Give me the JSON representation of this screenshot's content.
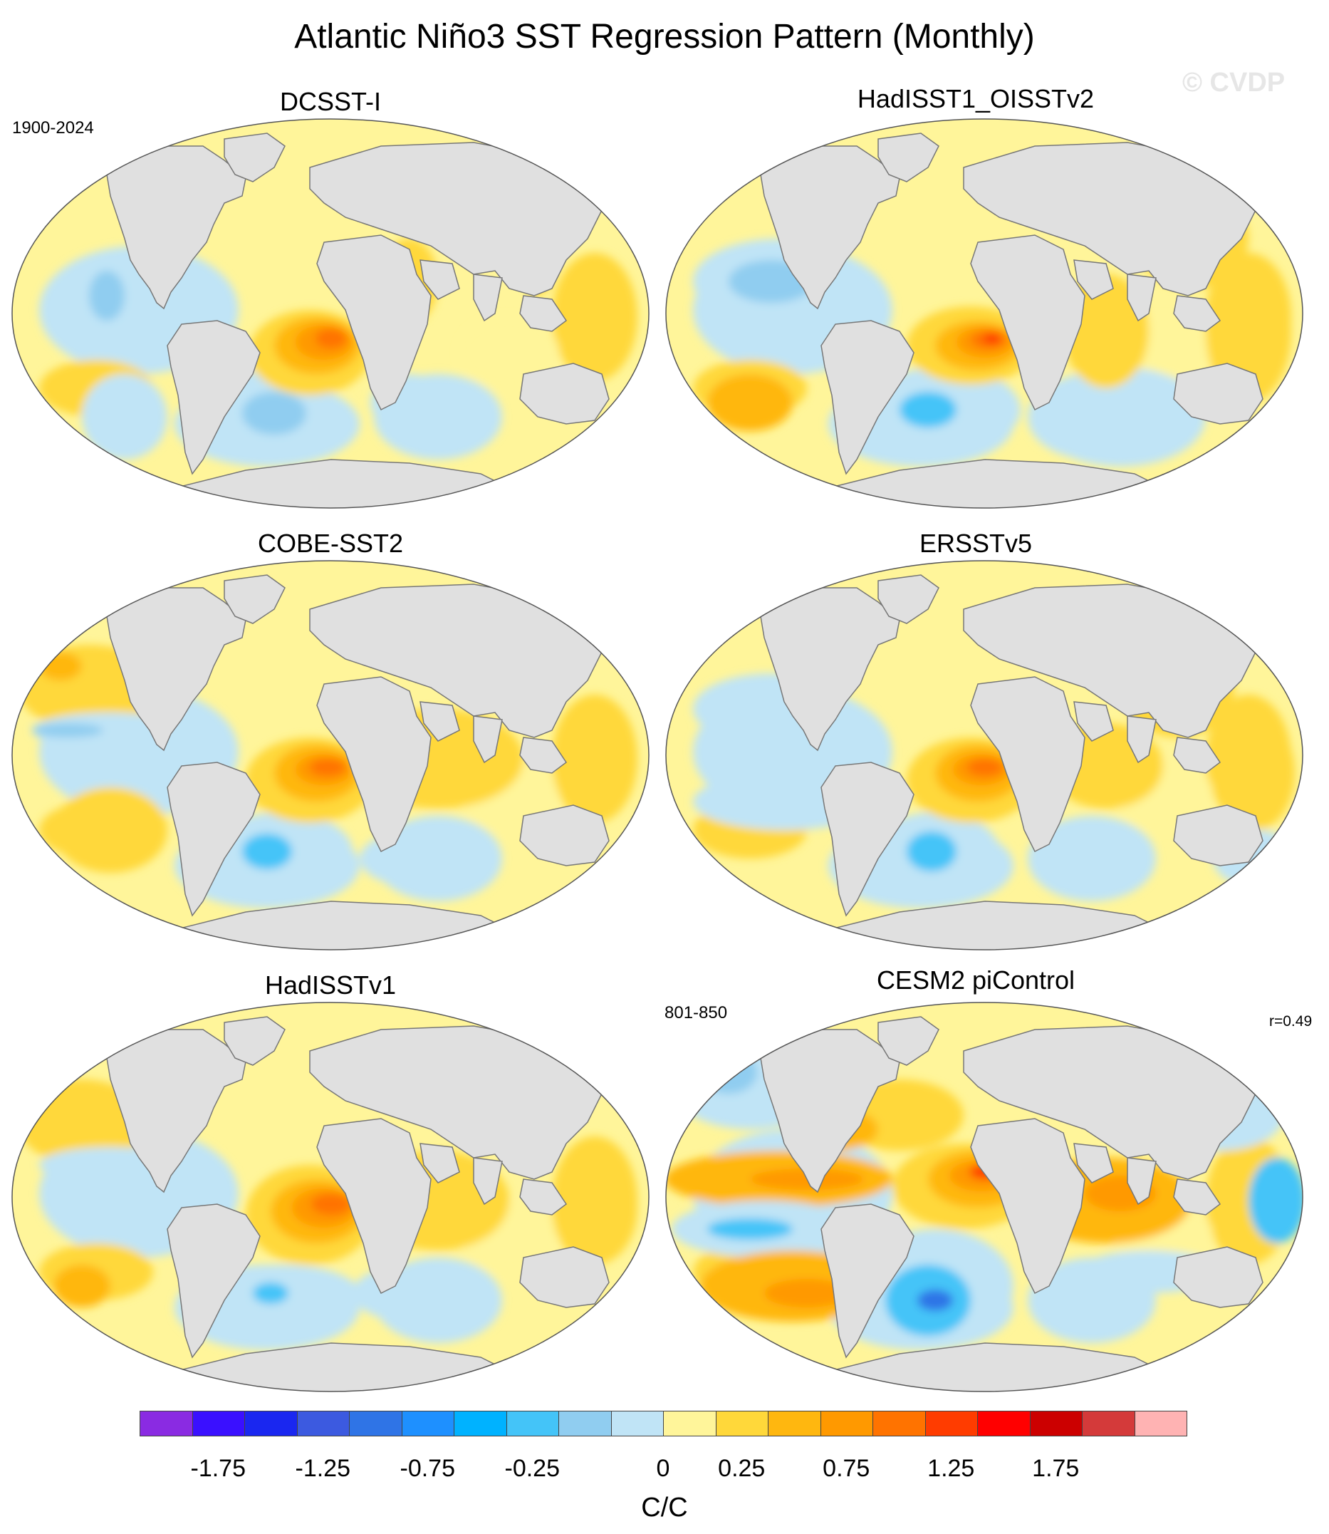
{
  "figure": {
    "title": "Atlantic Niño3 SST Regression Pattern (Monthly)",
    "watermark": "© CVDP",
    "units": "C/C"
  },
  "panels": [
    {
      "title": "DCSST-I",
      "left_note": "1900-2024",
      "right_note": ""
    },
    {
      "title": "HadISST1_OISSTv2",
      "left_note": "",
      "right_note": ""
    },
    {
      "title": "COBE-SST2",
      "left_note": "",
      "right_note": ""
    },
    {
      "title": "ERSSTv5",
      "left_note": "",
      "right_note": ""
    },
    {
      "title": "HadISSTv1",
      "left_note": "",
      "right_note": ""
    },
    {
      "title": "CESM2 piControl",
      "left_note": "801-850",
      "right_note": "r=0.49"
    }
  ],
  "colorbar": {
    "labels": [
      "-1.75",
      "-1.25",
      "-0.75",
      "-0.25",
      "0",
      "0.25",
      "0.75",
      "1.25",
      "1.75"
    ],
    "colors": [
      "#8a2be2",
      "#3a10ff",
      "#1a27f0",
      "#3c5ae0",
      "#2f74e6",
      "#1e90ff",
      "#00b2ff",
      "#44c4f8",
      "#90cdf0",
      "#c0e4f6",
      "#fff59a",
      "#ffd83a",
      "#ffb70f",
      "#ff9900",
      "#ff7300",
      "#ff3c00",
      "#ff0000",
      "#cc0000",
      "#d43a3a",
      "#ffb3b3"
    ]
  },
  "chart_data": {
    "type": "map",
    "projection": "Robinson (global)",
    "variable": "SST regression on Atlantic Niño3 index",
    "units": "C/C",
    "contour_levels": [
      -1.75,
      -1.5,
      -1.25,
      -1.0,
      -0.75,
      -0.5,
      -0.25,
      -0.1,
      0,
      0.1,
      0.25,
      0.5,
      0.75,
      1.0,
      1.25,
      1.5,
      1.75,
      2.0
    ],
    "panels": [
      "DCSST-I",
      "HadISST1_OISSTv2",
      "COBE-SST2",
      "ERSSTv5",
      "HadISSTv1",
      "CESM2 piControl"
    ],
    "notes": {
      "DCSST-I": "1900-2024",
      "CESM2 piControl": "801-850, r=0.49"
    },
    "land_color": "#e0e0e0"
  }
}
